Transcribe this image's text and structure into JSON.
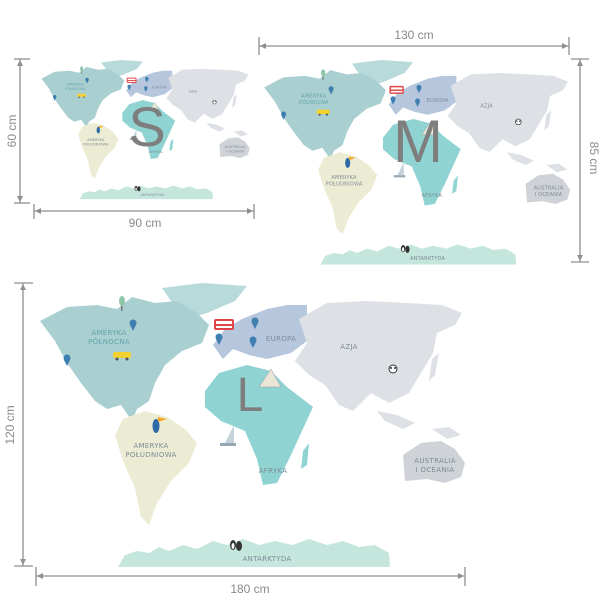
{
  "sizes": {
    "S": {
      "letter": "S",
      "width_label": "90 cm",
      "height_label": "60 cm"
    },
    "M": {
      "letter": "M",
      "width_label": "130 cm",
      "height_label": "85 cm"
    },
    "L": {
      "letter": "L",
      "width_label": "180 cm",
      "height_label": "120 cm"
    }
  },
  "map": {
    "labels": {
      "north_america": [
        "AMERYKA",
        "PÓŁNOCNA"
      ],
      "south_america": [
        "AMERYKA",
        "POŁUDNIOWA"
      ],
      "europe": "EUROPA",
      "asia": "AZJA",
      "africa": "AFRYKA",
      "australia": [
        "AUSTRALIA",
        "I OCEANIA"
      ],
      "antarctica": "ANTARKTYDA"
    },
    "colors": {
      "north_america": "#a9cfd1",
      "greenland": "#b9dadb",
      "south_america": "#ececd4",
      "europe": "#b6c6dc",
      "africa": "#8fd4d2",
      "asia": "#dde0e5",
      "australia": "#cfd2d6",
      "antarctica": "#c4e6dd",
      "pin": "#3f7fb0",
      "bus": "#e04545",
      "taxi": "#f2d230"
    },
    "icons": [
      "map-pin-icon",
      "double-decker-bus-icon",
      "taxi-icon",
      "toucan-icon",
      "panda-icon",
      "penguin-icon",
      "sailboat-icon",
      "pyramid-icon",
      "tree-icon"
    ]
  }
}
